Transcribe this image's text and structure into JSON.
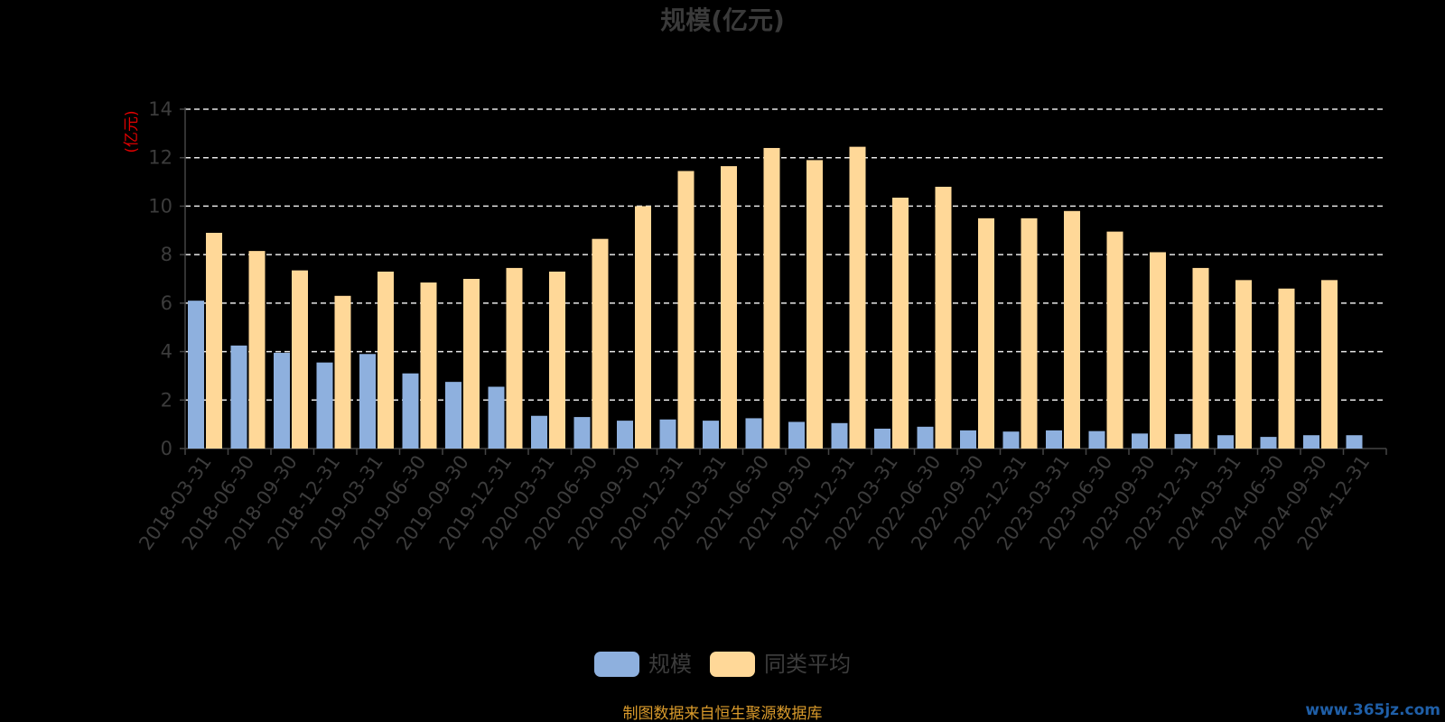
{
  "chart_data": {
    "type": "bar",
    "title": "规模(亿元)",
    "ylabel": "(亿元)",
    "xlabel": "",
    "ylim": [
      0,
      14
    ],
    "yticks": [
      0,
      2,
      4,
      6,
      8,
      10,
      12,
      14
    ],
    "grid": true,
    "legend_position": "bottom",
    "categories": [
      "2018-03-31",
      "2018-06-30",
      "2018-09-30",
      "2018-12-31",
      "2019-03-31",
      "2019-06-30",
      "2019-09-30",
      "2019-12-31",
      "2020-03-31",
      "2020-06-30",
      "2020-09-30",
      "2020-12-31",
      "2021-03-31",
      "2021-06-30",
      "2021-09-30",
      "2021-12-31",
      "2022-03-31",
      "2022-06-30",
      "2022-09-30",
      "2022-12-31",
      "2023-03-31",
      "2023-06-30",
      "2023-09-30",
      "2023-12-31",
      "2024-03-31",
      "2024-06-30",
      "2024-09-30",
      "2024-12-31"
    ],
    "series": [
      {
        "name": "规模",
        "color": "#8eb0de",
        "values": [
          6.1,
          4.25,
          3.95,
          3.55,
          3.9,
          3.1,
          2.75,
          2.55,
          1.35,
          1.3,
          1.15,
          1.2,
          1.15,
          1.25,
          1.1,
          1.05,
          0.82,
          0.9,
          0.75,
          0.7,
          0.75,
          0.72,
          0.62,
          0.6,
          0.55,
          0.48,
          0.55,
          0.55
        ]
      },
      {
        "name": "同类平均",
        "color": "#ffd898",
        "values": [
          8.9,
          8.15,
          7.35,
          6.3,
          7.3,
          6.85,
          7.0,
          7.45,
          7.3,
          8.65,
          10.0,
          11.45,
          11.65,
          12.4,
          11.9,
          12.45,
          10.35,
          10.8,
          9.5,
          9.5,
          9.8,
          8.95,
          8.1,
          7.45,
          6.95,
          6.6,
          6.95,
          null
        ]
      }
    ],
    "source_note": "制图数据来自恒生聚源数据库",
    "watermark": "www.365jz.com"
  }
}
